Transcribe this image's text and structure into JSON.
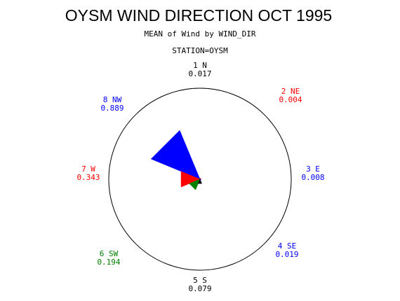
{
  "chart_data": {
    "type": "wind-rose",
    "title": "OYSM WIND DIRECTION OCT 1995",
    "subtitle": "MEAN of Wind by WIND_DIR",
    "station_label": "STATION=OYSM",
    "directions": [
      {
        "label": "1 N",
        "value_text": "0.017",
        "value": 0.017,
        "color": "#000000"
      },
      {
        "label": "2 NE",
        "value_text": "0.004",
        "value": 0.004,
        "color": "#ff0000"
      },
      {
        "label": "3 E",
        "value_text": "0.008",
        "value": 0.008,
        "color": "#0000ff"
      },
      {
        "label": "4 SE",
        "value_text": "0.019",
        "value": 0.019,
        "color": "#0000ff"
      },
      {
        "label": "5 S",
        "value_text": "0.079",
        "value": 0.079,
        "color": "#000000"
      },
      {
        "label": "6 SW",
        "value_text": "0.194",
        "value": 0.194,
        "color": "#008000"
      },
      {
        "label": "7 W",
        "value_text": "0.343",
        "value": 0.343,
        "color": "#ff0000"
      },
      {
        "label": "8 NW",
        "value_text": "0.889",
        "value": 0.889,
        "color": "#0000ff"
      }
    ]
  }
}
